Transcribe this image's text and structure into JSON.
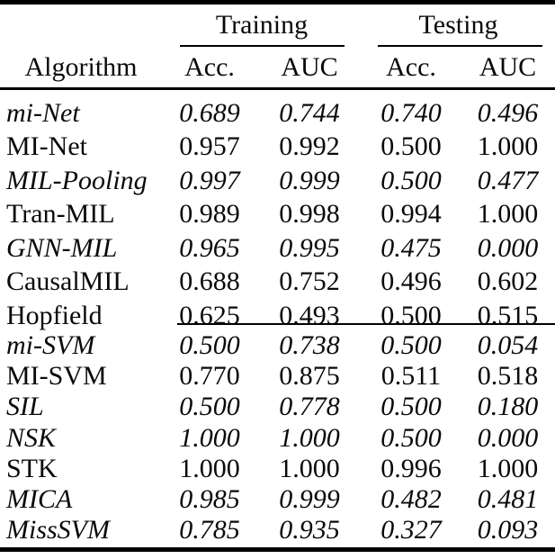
{
  "colors": {
    "background": "#ffffff",
    "text": "#0a0a0a",
    "rule": "#000000"
  },
  "chart_data": {
    "type": "table",
    "column_groups": [
      {
        "label": "Training",
        "span": 2
      },
      {
        "label": "Testing",
        "span": 2
      }
    ],
    "columns": [
      "Algorithm",
      "Acc.",
      "AUC",
      "Acc.",
      "AUC"
    ],
    "sections": [
      {
        "rows": [
          {
            "name": "mi-Net",
            "italic": true,
            "values": [
              "0.689",
              "0.744",
              "0.740",
              "0.496"
            ]
          },
          {
            "name": "MI-Net",
            "italic": false,
            "values": [
              "0.957",
              "0.992",
              "0.500",
              "1.000"
            ]
          },
          {
            "name": "MIL-Pooling",
            "italic": true,
            "values": [
              "0.997",
              "0.999",
              "0.500",
              "0.477"
            ]
          },
          {
            "name": "Tran-MIL",
            "italic": false,
            "values": [
              "0.989",
              "0.998",
              "0.994",
              "1.000"
            ]
          },
          {
            "name": "GNN-MIL",
            "italic": true,
            "values": [
              "0.965",
              "0.995",
              "0.475",
              "0.000"
            ]
          },
          {
            "name": "CausalMIL",
            "italic": false,
            "values": [
              "0.688",
              "0.752",
              "0.496",
              "0.602"
            ]
          },
          {
            "name": "Hopfield",
            "italic": false,
            "values": [
              "0.625",
              "0.493",
              "0.500",
              "0.515"
            ]
          }
        ]
      },
      {
        "rows": [
          {
            "name": "mi-SVM",
            "italic": true,
            "values": [
              "0.500",
              "0.738",
              "0.500",
              "0.054"
            ]
          },
          {
            "name": "MI-SVM",
            "italic": false,
            "values": [
              "0.770",
              "0.875",
              "0.511",
              "0.518"
            ]
          },
          {
            "name": "SIL",
            "italic": true,
            "values": [
              "0.500",
              "0.778",
              "0.500",
              "0.180"
            ]
          },
          {
            "name": "NSK",
            "italic": true,
            "values": [
              "1.000",
              "1.000",
              "0.500",
              "0.000"
            ]
          },
          {
            "name": "STK",
            "italic": false,
            "values": [
              "1.000",
              "1.000",
              "0.996",
              "1.000"
            ]
          },
          {
            "name": "MICA",
            "italic": true,
            "values": [
              "0.985",
              "0.999",
              "0.482",
              "0.481"
            ]
          },
          {
            "name": "MissSVM",
            "italic": true,
            "values": [
              "0.785",
              "0.935",
              "0.327",
              "0.093"
            ]
          }
        ]
      }
    ]
  }
}
